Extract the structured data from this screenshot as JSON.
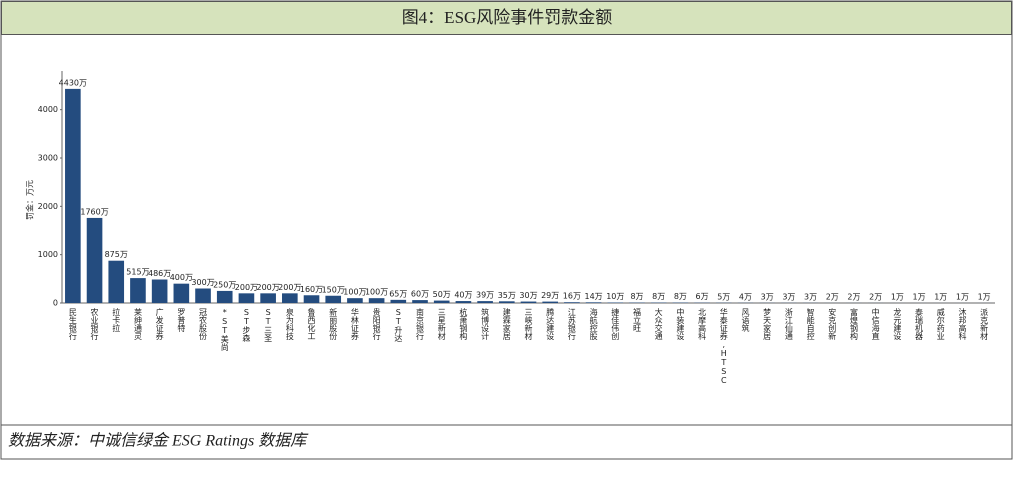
{
  "chart_data": {
    "type": "bar",
    "title": "图4：ESG风险事件罚款金额",
    "y_label": "罚金：万元",
    "source": "数据来源：中诚信绿金 ESG Ratings 数据库",
    "categories": [
      "民生银行",
      "农业银行",
      "拉卡拉",
      "莱绅通灵",
      "广发证券",
      "罗普特",
      "冠农股份",
      "*ST美尚",
      "ST步森",
      "ST三圣",
      "泉为科技",
      "鲁西化工",
      "新丽股份",
      "华林证券",
      "贵阳银行",
      "ST升达",
      "南京银行",
      "三星新材",
      "杭萧钢构",
      "筑博设计",
      "建霖家居",
      "三峡新材",
      "腾达建设",
      "江苏银行",
      "海航控股",
      "捷佳伟创",
      "福立旺",
      "大众交通",
      "中装建设",
      "北摩高科",
      "华泰证券,HTSC",
      "风语筑",
      "梦天家居",
      "浙江仙通",
      "智能自控",
      "安克创新",
      "富煌钢构",
      "中信海直",
      "龙元建设",
      "泰瑞机器",
      "威尔药业",
      "沐邦高科",
      "派克新材"
    ],
    "values": [
      4430,
      1760,
      875,
      515,
      486,
      400,
      300,
      250,
      200,
      200,
      200,
      160,
      150,
      100,
      100,
      65,
      60,
      50,
      40,
      39,
      35,
      30,
      29,
      16,
      14,
      10,
      8,
      8,
      8,
      6,
      5,
      4,
      3,
      3,
      3,
      2,
      2,
      2,
      1,
      1,
      1,
      1,
      1
    ],
    "value_labels": [
      "4430万",
      "1760万",
      "875万",
      "515万",
      "486万",
      "400万",
      "300万",
      "250万",
      "200万",
      "200万",
      "200万",
      "160万",
      "150万",
      "100万",
      "100万",
      "65万",
      "60万",
      "50万",
      "40万",
      "39万",
      "35万",
      "30万",
      "29万",
      "16万",
      "14万",
      "10万",
      "8万",
      "8万",
      "8万",
      "6万",
      "5万",
      "4万",
      "3万",
      "3万",
      "3万",
      "2万",
      "2万",
      "2万",
      "1万",
      "1万",
      "1万",
      "1万",
      "1万"
    ],
    "color": "#244c7f",
    "ylim": [
      0,
      4800
    ],
    "yticks": [
      0,
      1000,
      2000,
      3000,
      4000
    ],
    "grid": false
  }
}
